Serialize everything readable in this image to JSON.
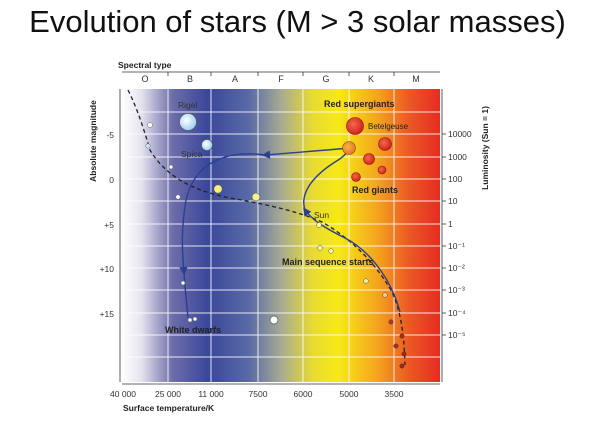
{
  "slide": {
    "title": "Evolution of stars (M > 3 solar masses)"
  },
  "diagram": {
    "spectral_type_label": "Spectral type",
    "spectral_types": [
      "O",
      "B",
      "A",
      "F",
      "G",
      "K",
      "M"
    ],
    "left_axis_label": "Absolute magnitude",
    "left_ticks": [
      "-5",
      "0",
      "+5",
      "+10",
      "+15"
    ],
    "right_axis_label": "Luminosity (Sun = 1)",
    "right_ticks": [
      "10000",
      "1000",
      "100",
      "10",
      "1",
      "10⁻¹",
      "10⁻²",
      "10⁻³",
      "10⁻⁴",
      "10⁻⁵"
    ],
    "bottom_axis_label": "Surface temperature/K",
    "bottom_ticks": [
      "40 000",
      "25 000",
      "11 000",
      "7500",
      "6000",
      "5000",
      "3500"
    ],
    "labels": {
      "rigel": "Rigel",
      "spica": "Spica",
      "red_supergiants": "Red supergiants",
      "betelgeuse": "Betelgeuse",
      "red_giants": "Red giants",
      "sun": "Sun",
      "main_sequence": "Main sequence starts",
      "white_dwarfs": "White dwarfs"
    },
    "colors": {
      "hot_blue": "#3a4a9a",
      "white": "#ffffff",
      "yellow": "#f3e514",
      "orange": "#f08a1e",
      "red": "#e8302a",
      "track": "#2e3f8f"
    }
  }
}
